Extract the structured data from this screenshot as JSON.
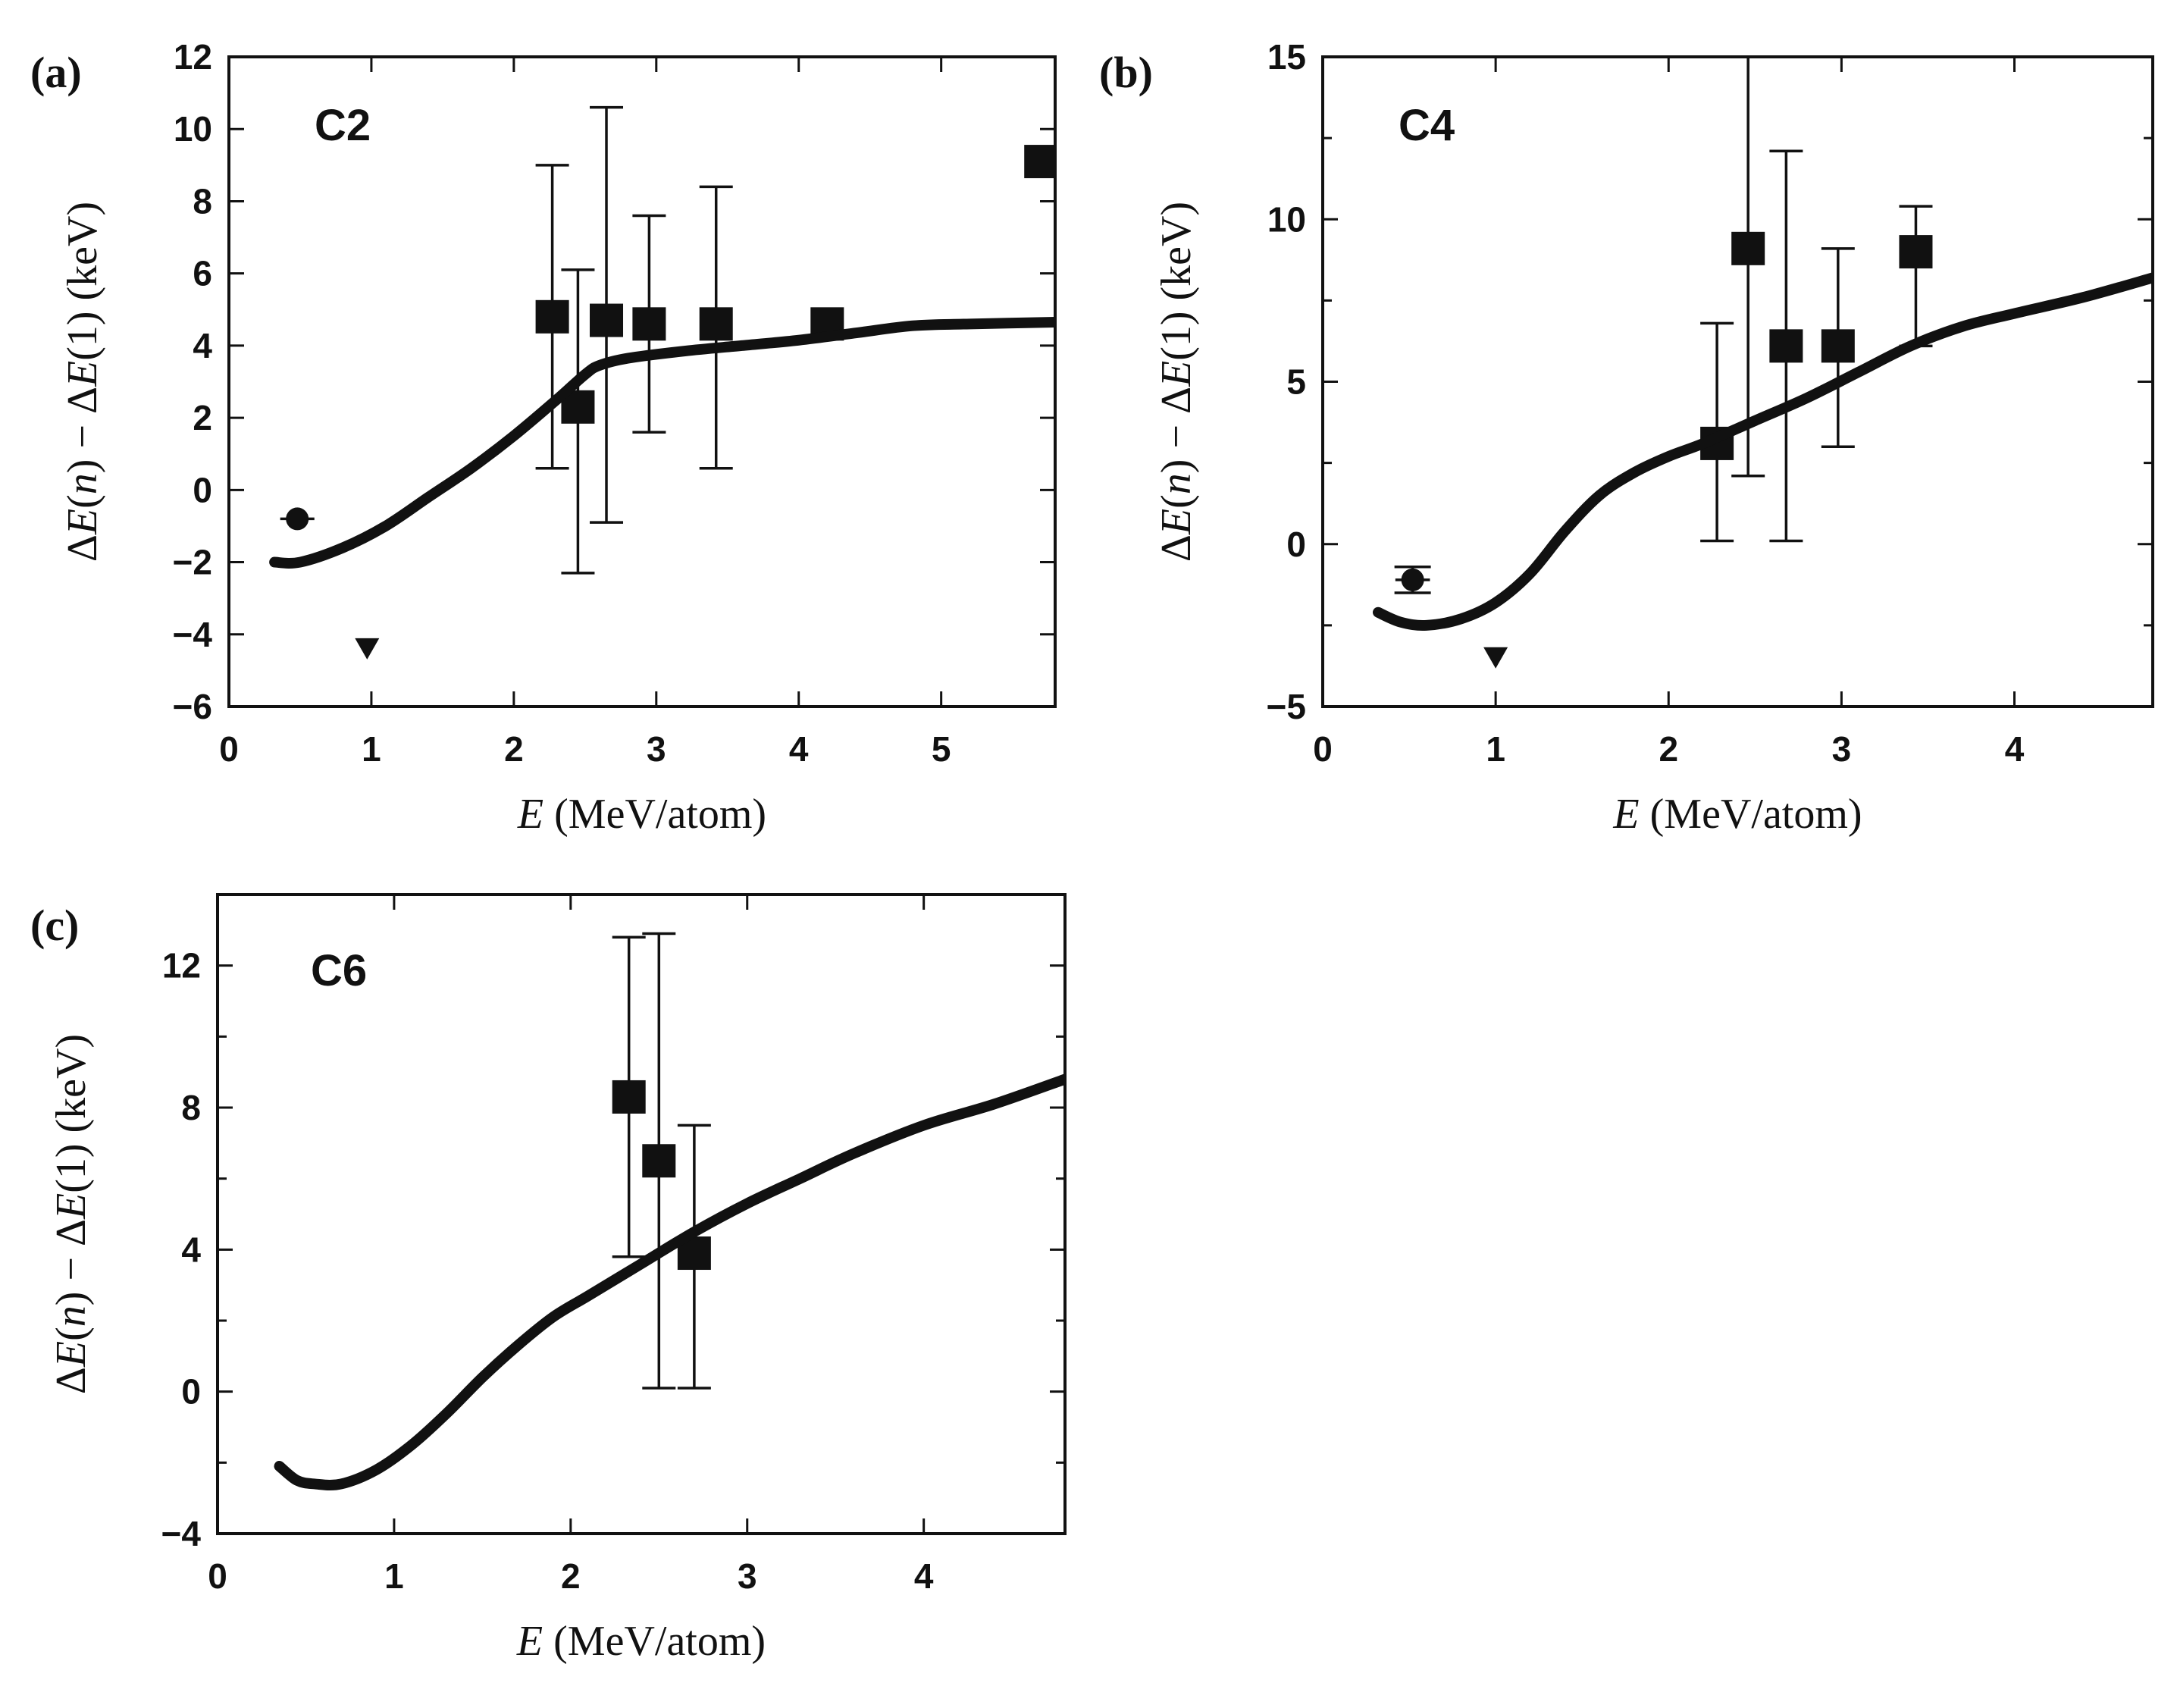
{
  "chart_data": [
    {
      "panel_label": "(a)",
      "type": "scatter",
      "title": "C2",
      "xlabel": "E (MeV/atom)",
      "ylabel": "ΔE(n) − ΔE(1) (keV)",
      "xlim": [
        0,
        5.8
      ],
      "ylim": [
        -6,
        12
      ],
      "xticks": [
        0,
        1,
        2,
        3,
        4,
        5
      ],
      "yticks": [
        -6,
        -4,
        -2,
        0,
        2,
        4,
        6,
        8,
        10,
        12
      ],
      "xtick_labels": [
        "0",
        "1",
        "2",
        "3",
        "4",
        "5"
      ],
      "ytick_labels": [
        "−6",
        "−4",
        "−2",
        "0",
        "2",
        "4",
        "6",
        "8",
        "10",
        "12"
      ],
      "grid": false,
      "series": [
        {
          "name": "squares",
          "marker": "square",
          "x": [
            2.27,
            2.45,
            2.65,
            2.95,
            3.42,
            4.2,
            5.7
          ],
          "y": [
            4.8,
            2.3,
            4.7,
            4.6,
            4.6,
            4.6,
            9.1
          ],
          "err_low": [
            0.6,
            -2.3,
            -0.9,
            1.6,
            0.6,
            null,
            null
          ],
          "err_high": [
            9.0,
            6.1,
            10.6,
            7.6,
            8.4,
            null,
            null
          ]
        },
        {
          "name": "circle",
          "marker": "circle",
          "x": [
            0.48
          ],
          "y": [
            -0.8
          ],
          "xerr": 0.12
        },
        {
          "name": "triangle",
          "marker": "triangle-down",
          "x": [
            0.97
          ],
          "y": [
            -4.4
          ]
        },
        {
          "name": "theory",
          "marker": "line",
          "x": [
            0.32,
            0.5,
            0.8,
            1.1,
            1.4,
            1.7,
            2.0,
            2.3,
            2.5,
            2.6,
            2.8,
            3.2,
            3.6,
            4.0,
            4.4,
            4.8,
            5.2,
            5.8
          ],
          "y": [
            -2.0,
            -2.0,
            -1.6,
            -1.0,
            -0.2,
            0.6,
            1.5,
            2.5,
            3.2,
            3.45,
            3.65,
            3.85,
            4.0,
            4.15,
            4.35,
            4.55,
            4.6,
            4.65
          ]
        }
      ]
    },
    {
      "panel_label": "(b)",
      "type": "scatter",
      "title": "C4",
      "xlabel": "E (MeV/atom)",
      "ylabel": "ΔE(n) − ΔE(1) (keV)",
      "xlim": [
        0,
        4.8
      ],
      "ylim": [
        -5,
        15
      ],
      "xticks": [
        0,
        1,
        2,
        3,
        4
      ],
      "yticks": [
        -5,
        0,
        5,
        10,
        15
      ],
      "xtick_labels": [
        "0",
        "1",
        "2",
        "3",
        "4"
      ],
      "ytick_labels": [
        "−5",
        "0",
        "5",
        "10",
        "15"
      ],
      "minor_yticks": [
        -2.5,
        2.5,
        7.5,
        12.5
      ],
      "grid": false,
      "series": [
        {
          "name": "squares",
          "marker": "square",
          "x": [
            2.28,
            2.46,
            2.68,
            2.98,
            3.43
          ],
          "y": [
            3.1,
            9.1,
            6.1,
            6.1,
            9.0
          ],
          "err_low": [
            0.1,
            2.1,
            0.1,
            3.0,
            6.1
          ],
          "err_high": [
            6.8,
            15.0,
            12.1,
            9.1,
            10.4
          ]
        },
        {
          "name": "circle",
          "marker": "circle",
          "x": [
            0.52
          ],
          "y": [
            -1.1
          ],
          "yerr_low": -1.5,
          "yerr_high": -0.7,
          "xerr": 0.1
        },
        {
          "name": "triangle",
          "marker": "triangle-down",
          "x": [
            1.0
          ],
          "y": [
            -3.5
          ]
        },
        {
          "name": "theory",
          "marker": "line",
          "x": [
            0.32,
            0.45,
            0.6,
            0.8,
            1.0,
            1.2,
            1.4,
            1.6,
            1.8,
            2.0,
            2.2,
            2.5,
            2.8,
            3.1,
            3.4,
            3.7,
            4.0,
            4.4,
            4.8
          ],
          "y": [
            -2.1,
            -2.4,
            -2.5,
            -2.3,
            -1.8,
            -0.9,
            0.4,
            1.5,
            2.2,
            2.7,
            3.1,
            3.8,
            4.5,
            5.3,
            6.1,
            6.7,
            7.1,
            7.6,
            8.2
          ]
        }
      ]
    },
    {
      "panel_label": "(c)",
      "type": "scatter",
      "title": "C6",
      "xlabel": "E (MeV/atom)",
      "ylabel": "ΔE(n) − ΔE(1) (keV)",
      "xlim": [
        0,
        4.8
      ],
      "ylim": [
        -4,
        14
      ],
      "xticks": [
        0,
        1,
        2,
        3,
        4
      ],
      "yticks": [
        -4,
        0,
        4,
        8,
        12
      ],
      "xtick_labels": [
        "0",
        "1",
        "2",
        "3",
        "4"
      ],
      "ytick_labels": [
        "−4",
        "0",
        "4",
        "8",
        "12"
      ],
      "minor_yticks": [
        -2,
        2,
        6,
        10
      ],
      "grid": false,
      "series": [
        {
          "name": "squares",
          "marker": "square",
          "x": [
            2.33,
            2.5,
            2.7
          ],
          "y": [
            8.3,
            6.5,
            3.9
          ],
          "err_low": [
            3.8,
            0.1,
            0.1
          ],
          "err_high": [
            12.8,
            12.9,
            7.5
          ]
        },
        {
          "name": "theory",
          "marker": "line",
          "x": [
            0.35,
            0.45,
            0.55,
            0.7,
            0.9,
            1.1,
            1.3,
            1.5,
            1.7,
            1.9,
            2.1,
            2.4,
            2.7,
            3.0,
            3.3,
            3.6,
            4.0,
            4.4,
            4.8
          ],
          "y": [
            -2.1,
            -2.5,
            -2.6,
            -2.6,
            -2.2,
            -1.5,
            -0.6,
            0.4,
            1.3,
            2.1,
            2.7,
            3.6,
            4.5,
            5.3,
            6.0,
            6.7,
            7.5,
            8.1,
            8.8
          ]
        }
      ]
    }
  ]
}
